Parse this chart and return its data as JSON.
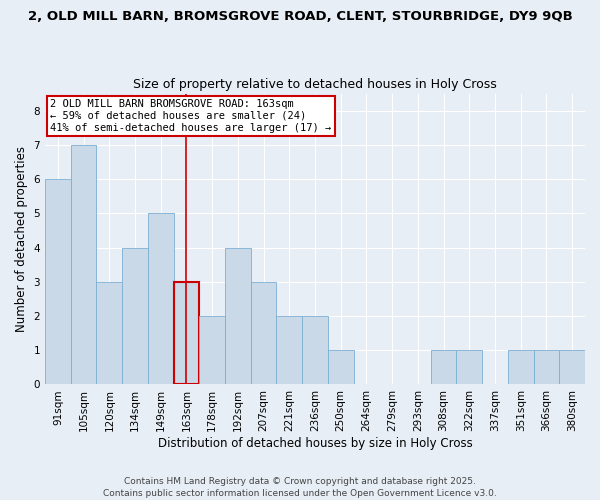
{
  "title_line1": "2, OLD MILL BARN, BROMSGROVE ROAD, CLENT, STOURBRIDGE, DY9 9QB",
  "title_line2": "Size of property relative to detached houses in Holy Cross",
  "xlabel": "Distribution of detached houses by size in Holy Cross",
  "ylabel": "Number of detached properties",
  "categories": [
    "91sqm",
    "105sqm",
    "120sqm",
    "134sqm",
    "149sqm",
    "163sqm",
    "178sqm",
    "192sqm",
    "207sqm",
    "221sqm",
    "236sqm",
    "250sqm",
    "264sqm",
    "279sqm",
    "293sqm",
    "308sqm",
    "322sqm",
    "337sqm",
    "351sqm",
    "366sqm",
    "380sqm"
  ],
  "values": [
    6,
    7,
    3,
    4,
    5,
    3,
    2,
    4,
    3,
    2,
    2,
    1,
    0,
    0,
    0,
    1,
    1,
    0,
    1,
    1,
    1
  ],
  "bar_color": "#c9d9e8",
  "bar_edge_color": "#7bafd4",
  "highlight_index": 5,
  "highlight_line_color": "#cc0000",
  "annotation_text": "2 OLD MILL BARN BROMSGROVE ROAD: 163sqm\n← 59% of detached houses are smaller (24)\n41% of semi-detached houses are larger (17) →",
  "annotation_box_color": "#ffffff",
  "annotation_box_edge_color": "#cc0000",
  "ylim": [
    0,
    8.5
  ],
  "yticks": [
    0,
    1,
    2,
    3,
    4,
    5,
    6,
    7,
    8
  ],
  "footer_text": "Contains HM Land Registry data © Crown copyright and database right 2025.\nContains public sector information licensed under the Open Government Licence v3.0.",
  "background_color": "#e8eef5",
  "plot_background_color": "#e8eef5",
  "title_fontsize": 9.5,
  "subtitle_fontsize": 9,
  "axis_label_fontsize": 8.5,
  "tick_fontsize": 7.5,
  "annotation_fontsize": 7.5,
  "footer_fontsize": 6.5
}
